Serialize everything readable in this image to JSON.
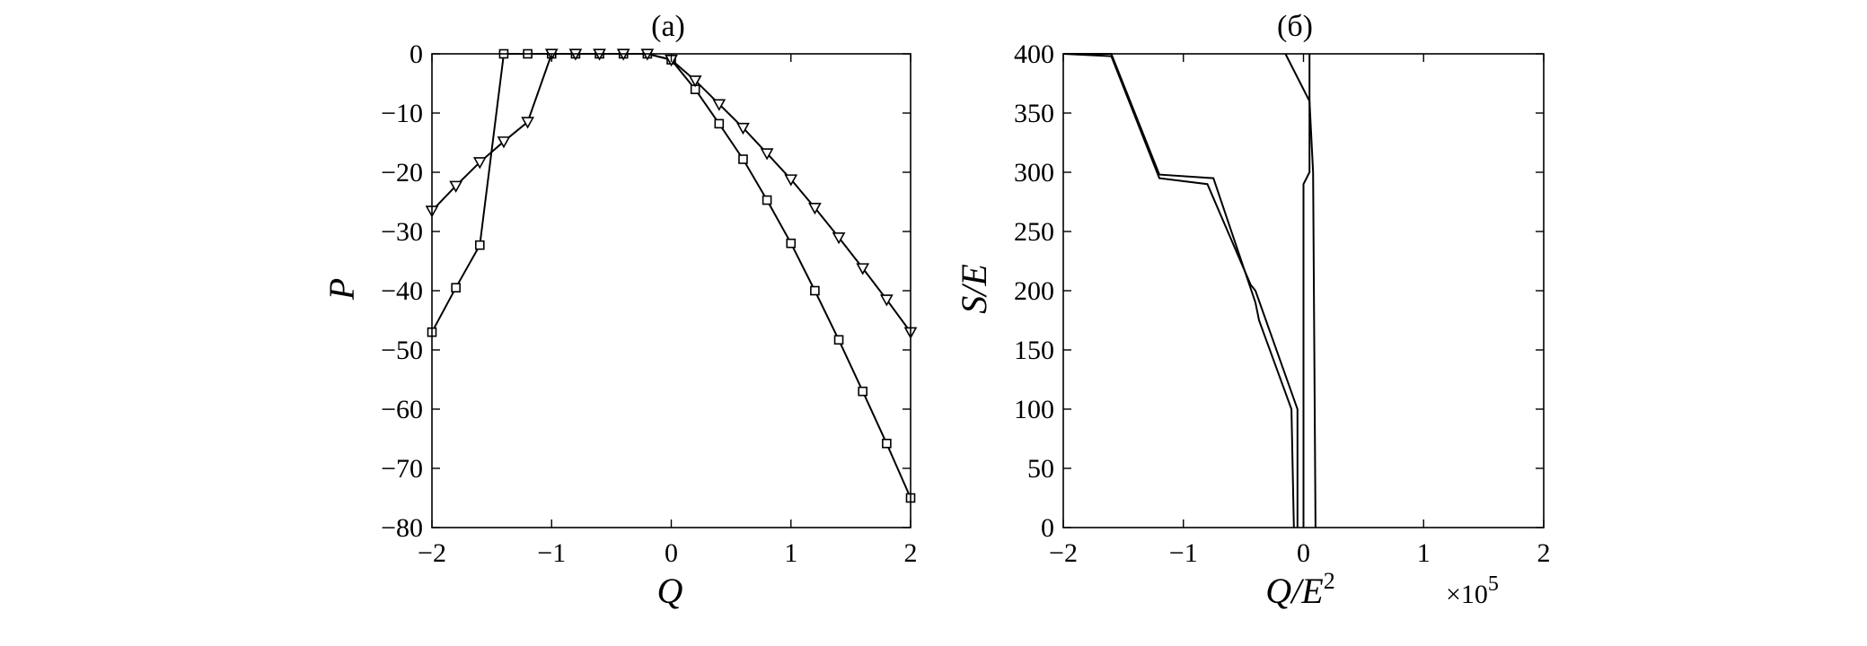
{
  "chart_data": [
    {
      "type": "line",
      "title": "(a)",
      "xlabel": "Q",
      "ylabel": "P",
      "xlim": [
        -2,
        2
      ],
      "ylim": [
        -80,
        0
      ],
      "xticks": [
        -2,
        -1,
        0,
        1,
        2
      ],
      "yticks": [
        -80,
        -70,
        -60,
        -50,
        -40,
        -30,
        -20,
        -10,
        0
      ],
      "xtick_labels": [
        "−2",
        "−1",
        "0",
        "1",
        "2"
      ],
      "ytick_labels": [
        "−80",
        "−70",
        "−60",
        "−50",
        "−40",
        "−30",
        "−20",
        "−10",
        "0"
      ],
      "grid": false,
      "legend": "none",
      "series": [
        {
          "marker": "square",
          "x": [
            -2.0,
            -1.8,
            -1.6,
            -1.4,
            -1.2,
            -1.0,
            -0.8,
            -0.6,
            -0.4,
            -0.2,
            0.0,
            0.2,
            0.4,
            0.6,
            0.8,
            1.0,
            1.2,
            1.4,
            1.6,
            1.8,
            2.0
          ],
          "y": [
            -47,
            -39.5,
            -32.3,
            0,
            0,
            0,
            0,
            0,
            0,
            0,
            -1,
            -6,
            -11.8,
            -17.8,
            -24.7,
            -32,
            -40,
            -48.3,
            -57,
            -65.8,
            -75
          ]
        },
        {
          "marker": "triangle-down",
          "x": [
            -2.0,
            -1.8,
            -1.6,
            -1.4,
            -1.2,
            -1.0,
            -0.8,
            -0.6,
            -0.4,
            -0.2,
            0.0,
            0.2,
            0.4,
            0.6,
            0.8,
            1.0,
            1.2,
            1.4,
            1.6,
            1.8,
            2.0
          ],
          "y": [
            -26.5,
            -22.3,
            -18.3,
            -14.8,
            -11.5,
            0,
            0,
            0,
            0,
            0,
            -1,
            -4.5,
            -8.5,
            -12.5,
            -16.8,
            -21.2,
            -26,
            -31,
            -36.2,
            -41.5,
            -47
          ]
        }
      ]
    },
    {
      "type": "line",
      "title": "(б)",
      "xlabel": "Q/E",
      "xlabel_sup": "2",
      "ylabel": "S/E",
      "x_multiplier": "×10",
      "x_multiplier_exp": "5",
      "xlim": [
        -2,
        2
      ],
      "ylim": [
        0,
        400
      ],
      "xticks": [
        -2,
        -1,
        0,
        1,
        2
      ],
      "yticks": [
        0,
        50,
        100,
        150,
        200,
        250,
        300,
        350,
        400
      ],
      "xtick_labels": [
        "−2",
        "−1",
        "0",
        "1",
        "2"
      ],
      "ytick_labels": [
        "0",
        "50",
        "100",
        "150",
        "200",
        "250",
        "300",
        "350",
        "400"
      ],
      "grid": false,
      "legend": "none",
      "series": [
        {
          "x": [
            -0.05,
            -0.05,
            -0.4,
            -0.44,
            -0.8,
            -1.2,
            -1.6,
            -2.0
          ],
          "y": [
            0,
            100,
            200,
            205,
            290,
            295,
            398,
            400
          ]
        },
        {
          "x": [
            -0.08,
            -0.1,
            -0.37,
            -0.4,
            -0.75,
            -1.2,
            -1.6,
            -2.0
          ],
          "y": [
            0,
            100,
            175,
            190,
            295,
            298,
            400,
            400
          ]
        },
        {
          "x": [
            0.0,
            0.0,
            0.05,
            0.05,
            -0.15
          ],
          "y": [
            0,
            290,
            300,
            360,
            400
          ]
        },
        {
          "x": [
            0.1,
            0.08,
            0.05,
            0.05
          ],
          "y": [
            0,
            300,
            360,
            400
          ]
        }
      ]
    }
  ]
}
